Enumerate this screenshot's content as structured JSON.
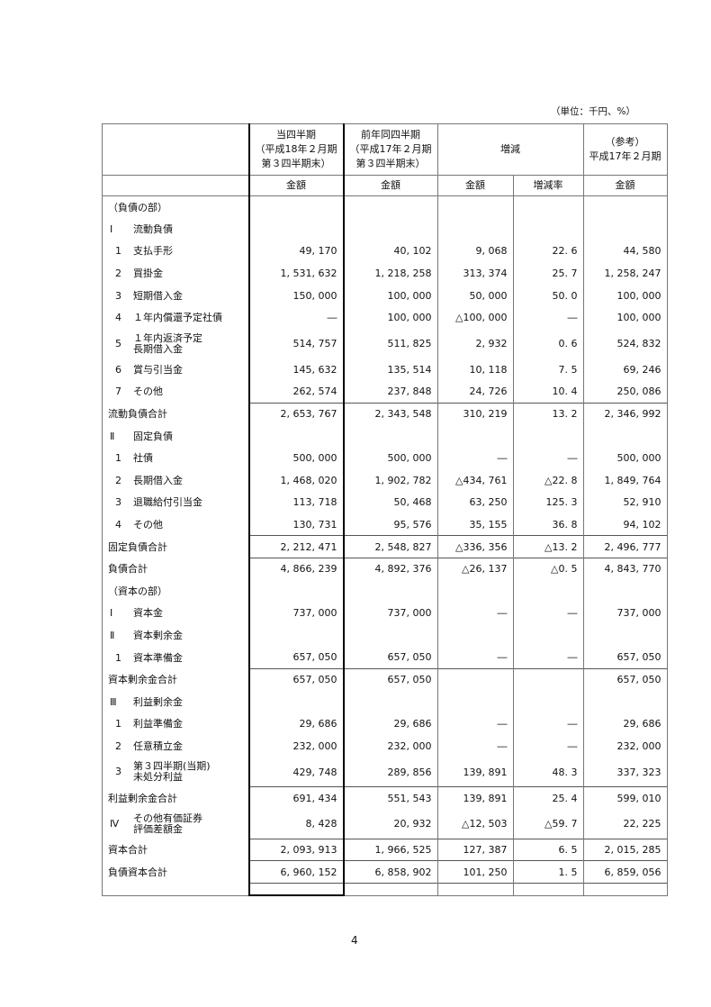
{
  "unit_note": "（単位：千円、%）",
  "header": {
    "col1": [
      "当四半期",
      "（平成18年２月期",
      "第３四半期末）"
    ],
    "col2": [
      "前年同四半期",
      "（平成17年２月期",
      "第３四半期末）"
    ],
    "col3": "増減",
    "col4": [
      "（参考）",
      "平成17年２月期"
    ],
    "sub": [
      "金額",
      "金額",
      "金額",
      "増減率",
      "金額"
    ]
  },
  "rows": [
    {
      "kind": "sec",
      "label": "（負債の部）",
      "v": [
        "",
        "",
        "",
        "",
        ""
      ]
    },
    {
      "kind": "head",
      "mark": "Ⅰ",
      "label": "流動負債",
      "v": [
        "",
        "",
        "",
        "",
        ""
      ]
    },
    {
      "kind": "item",
      "mark": "1",
      "label": "支払手形",
      "v": [
        "49, 170",
        "40, 102",
        "9, 068",
        "22. 6",
        "44, 580"
      ]
    },
    {
      "kind": "item",
      "mark": "2",
      "label": "買掛金",
      "v": [
        "1, 531, 632",
        "1, 218, 258",
        "313, 374",
        "25. 7",
        "1, 258, 247"
      ]
    },
    {
      "kind": "item",
      "mark": "3",
      "label": "短期借入金",
      "v": [
        "150, 000",
        "100, 000",
        "50, 000",
        "50. 0",
        "100, 000"
      ]
    },
    {
      "kind": "item",
      "mark": "4",
      "label": "１年内償還予定社債",
      "v": [
        "―",
        "100, 000",
        "△100, 000",
        "―",
        "100, 000"
      ]
    },
    {
      "kind": "item",
      "mark": "5",
      "label": "１年内返済予定\n長期借入金",
      "tall": true,
      "v": [
        "514, 757",
        "511, 825",
        "2, 932",
        "0. 6",
        "524, 832"
      ]
    },
    {
      "kind": "item",
      "mark": "6",
      "label": "賞与引当金",
      "v": [
        "145, 632",
        "135, 514",
        "10, 118",
        "7. 5",
        "69, 246"
      ]
    },
    {
      "kind": "item",
      "mark": "7",
      "label": "その他",
      "v": [
        "262, 574",
        "237, 848",
        "24, 726",
        "10. 4",
        "250, 086"
      ]
    },
    {
      "kind": "sub",
      "label": "流動負債合計",
      "topline": true,
      "v": [
        "2, 653, 767",
        "2, 343, 548",
        "310, 219",
        "13. 2",
        "2, 346, 992"
      ]
    },
    {
      "kind": "head",
      "mark": "Ⅱ",
      "label": "固定負債",
      "v": [
        "",
        "",
        "",
        "",
        ""
      ]
    },
    {
      "kind": "item",
      "mark": "1",
      "label": "社債",
      "v": [
        "500, 000",
        "500, 000",
        "―",
        "―",
        "500, 000"
      ]
    },
    {
      "kind": "item",
      "mark": "2",
      "label": "長期借入金",
      "v": [
        "1, 468, 020",
        "1, 902, 782",
        "△434, 761",
        "△22. 8",
        "1, 849, 764"
      ]
    },
    {
      "kind": "item",
      "mark": "3",
      "label": "退職給付引当金",
      "v": [
        "113, 718",
        "50, 468",
        "63, 250",
        "125. 3",
        "52, 910"
      ]
    },
    {
      "kind": "item",
      "mark": "4",
      "label": "その他",
      "v": [
        "130, 731",
        "95, 576",
        "35, 155",
        "36. 8",
        "94, 102"
      ]
    },
    {
      "kind": "sub",
      "label": "固定負債合計",
      "topline": true,
      "v": [
        "2, 212, 471",
        "2, 548, 827",
        "△336, 356",
        "△13. 2",
        "2, 496, 777"
      ]
    },
    {
      "kind": "sub",
      "label": "負債合計",
      "topline": true,
      "v": [
        "4, 866, 239",
        "4, 892, 376",
        "△26, 137",
        "△0. 5",
        "4, 843, 770"
      ]
    },
    {
      "kind": "sec",
      "label": "（資本の部）",
      "v": [
        "",
        "",
        "",
        "",
        ""
      ]
    },
    {
      "kind": "head",
      "mark": "Ⅰ",
      "label": "資本金",
      "v": [
        "737, 000",
        "737, 000",
        "―",
        "―",
        "737, 000"
      ]
    },
    {
      "kind": "head",
      "mark": "Ⅱ",
      "label": "資本剰余金",
      "v": [
        "",
        "",
        "",
        "",
        ""
      ]
    },
    {
      "kind": "item",
      "mark": "1",
      "label": "資本準備金",
      "v": [
        "657, 050",
        "657, 050",
        "―",
        "―",
        "657, 050"
      ]
    },
    {
      "kind": "sub",
      "label": "資本剰余金合計",
      "topline": true,
      "v": [
        "657, 050",
        "657, 050",
        "",
        "",
        "657, 050"
      ]
    },
    {
      "kind": "head",
      "mark": "Ⅲ",
      "label": "利益剰余金",
      "v": [
        "",
        "",
        "",
        "",
        ""
      ]
    },
    {
      "kind": "item",
      "mark": "1",
      "label": "利益準備金",
      "v": [
        "29, 686",
        "29, 686",
        "―",
        "―",
        "29, 686"
      ]
    },
    {
      "kind": "item",
      "mark": "2",
      "label": "任意積立金",
      "v": [
        "232, 000",
        "232, 000",
        "―",
        "―",
        "232, 000"
      ]
    },
    {
      "kind": "item",
      "mark": "3",
      "label": "第３四半期(当期)\n未処分利益",
      "tall": true,
      "v": [
        "429, 748",
        "289, 856",
        "139, 891",
        "48. 3",
        "337, 323"
      ]
    },
    {
      "kind": "sub",
      "label": "利益剰余金合計",
      "topline": true,
      "v": [
        "691, 434",
        "551, 543",
        "139, 891",
        "25. 4",
        "599, 010"
      ]
    },
    {
      "kind": "head",
      "mark": "Ⅳ",
      "label": "その他有価証券\n評価差額金",
      "tall": true,
      "v": [
        "8, 428",
        "20, 932",
        "△12, 503",
        "△59. 7",
        "22, 225"
      ]
    },
    {
      "kind": "sub",
      "label": "資本合計",
      "topline": true,
      "v": [
        "2, 093, 913",
        "1, 966, 525",
        "127, 387",
        "6. 5",
        "2, 015, 285"
      ]
    },
    {
      "kind": "sub",
      "label": "負債資本合計",
      "topline": true,
      "v": [
        "6, 960, 152",
        "6, 858, 902",
        "101, 250",
        "1. 5",
        "6, 859, 056"
      ]
    },
    {
      "kind": "empty",
      "label": "",
      "topline": true,
      "v": [
        "",
        "",
        "",
        "",
        ""
      ]
    }
  ],
  "page_number": "4"
}
